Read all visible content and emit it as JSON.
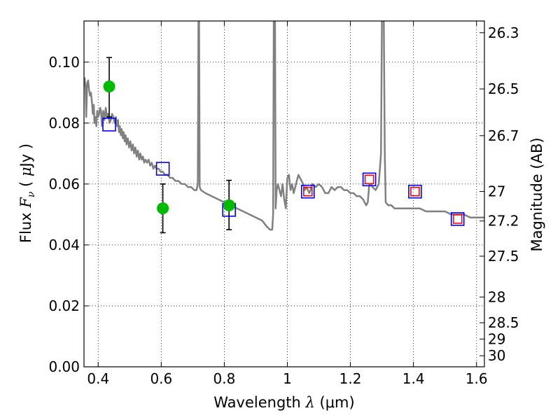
{
  "chart_data": {
    "type": "line",
    "xlabel": "Wavelength  λ (μm)",
    "xlabel_parts": {
      "prefix": "Wavelength  ",
      "symbol": "λ",
      "suffix": " (μm)"
    },
    "ylabel": "Flux  Fν  ( μJy )",
    "ylabel_parts": {
      "prefix": "Flux  ",
      "symbol": "F",
      "subscript": "ν",
      "suffix": "  ( ",
      "symbol2": "μ",
      "suffix2": "Jy )"
    },
    "y2label": "Magnitude (AB)",
    "xlim": [
      0.355,
      1.625
    ],
    "ylim": [
      0.0,
      0.1135
    ],
    "grid": true,
    "x_ticks": [
      {
        "value": 0.4,
        "label": "0.4"
      },
      {
        "value": 0.6,
        "label": "0.6"
      },
      {
        "value": 0.8,
        "label": "0.8"
      },
      {
        "value": 1.0,
        "label": "1"
      },
      {
        "value": 1.2,
        "label": "1.2"
      },
      {
        "value": 1.4,
        "label": "1.4"
      },
      {
        "value": 1.6,
        "label": "1.6"
      }
    ],
    "y_ticks": [
      {
        "value": 0.0,
        "label": "0.00"
      },
      {
        "value": 0.02,
        "label": "0.02"
      },
      {
        "value": 0.04,
        "label": "0.04"
      },
      {
        "value": 0.06,
        "label": "0.06"
      },
      {
        "value": 0.08,
        "label": "0.08"
      },
      {
        "value": 0.1,
        "label": "0.10"
      }
    ],
    "y2_ticks": [
      {
        "mag": 26.3,
        "label": "26.3"
      },
      {
        "mag": 26.5,
        "label": "26.5"
      },
      {
        "mag": 26.7,
        "label": "26.7"
      },
      {
        "mag": 27.0,
        "label": "27"
      },
      {
        "mag": 27.2,
        "label": "27.2"
      },
      {
        "mag": 27.5,
        "label": "27.5"
      },
      {
        "mag": 28.0,
        "label": "28"
      },
      {
        "mag": 28.5,
        "label": "28.5"
      },
      {
        "mag": 29.0,
        "label": "29"
      },
      {
        "mag": 30.0,
        "label": "30"
      }
    ],
    "series": [
      {
        "name": "SED model",
        "kind": "line",
        "color": "#808080",
        "points": [
          [
            0.357,
            0.095
          ],
          [
            0.36,
            0.091
          ],
          [
            0.362,
            0.082
          ],
          [
            0.365,
            0.093
          ],
          [
            0.368,
            0.094
          ],
          [
            0.371,
            0.091
          ],
          [
            0.374,
            0.089
          ],
          [
            0.377,
            0.09
          ],
          [
            0.38,
            0.087
          ],
          [
            0.383,
            0.083
          ],
          [
            0.386,
            0.086
          ],
          [
            0.388,
            0.08
          ],
          [
            0.391,
            0.082
          ],
          [
            0.394,
            0.079
          ],
          [
            0.397,
            0.084
          ],
          [
            0.4,
            0.082
          ],
          [
            0.403,
            0.083
          ],
          [
            0.406,
            0.085
          ],
          [
            0.409,
            0.084
          ],
          [
            0.412,
            0.079
          ],
          [
            0.416,
            0.084
          ],
          [
            0.42,
            0.081
          ],
          [
            0.424,
            0.085
          ],
          [
            0.428,
            0.082
          ],
          [
            0.432,
            0.083
          ],
          [
            0.436,
            0.08
          ],
          [
            0.44,
            0.081
          ],
          [
            0.444,
            0.083
          ],
          [
            0.448,
            0.082
          ],
          [
            0.452,
            0.08
          ],
          [
            0.456,
            0.082
          ],
          [
            0.46,
            0.079
          ],
          [
            0.463,
            0.081
          ],
          [
            0.466,
            0.077
          ],
          [
            0.469,
            0.079
          ],
          [
            0.472,
            0.076
          ],
          [
            0.475,
            0.078
          ],
          [
            0.478,
            0.075
          ],
          [
            0.481,
            0.077
          ],
          [
            0.484,
            0.074
          ],
          [
            0.487,
            0.076
          ],
          [
            0.49,
            0.073
          ],
          [
            0.494,
            0.075
          ],
          [
            0.498,
            0.072
          ],
          [
            0.502,
            0.074
          ],
          [
            0.506,
            0.071
          ],
          [
            0.51,
            0.073
          ],
          [
            0.514,
            0.07
          ],
          [
            0.518,
            0.072
          ],
          [
            0.522,
            0.069
          ],
          [
            0.526,
            0.071
          ],
          [
            0.53,
            0.068
          ],
          [
            0.534,
            0.07
          ],
          [
            0.538,
            0.068
          ],
          [
            0.542,
            0.069
          ],
          [
            0.546,
            0.067
          ],
          [
            0.55,
            0.068
          ],
          [
            0.555,
            0.067
          ],
          [
            0.56,
            0.068
          ],
          [
            0.565,
            0.066
          ],
          [
            0.57,
            0.067
          ],
          [
            0.575,
            0.065
          ],
          [
            0.58,
            0.066
          ],
          [
            0.586,
            0.065
          ],
          [
            0.592,
            0.065
          ],
          [
            0.598,
            0.064
          ],
          [
            0.605,
            0.064
          ],
          [
            0.612,
            0.063
          ],
          [
            0.62,
            0.063
          ],
          [
            0.628,
            0.062
          ],
          [
            0.636,
            0.062
          ],
          [
            0.645,
            0.061
          ],
          [
            0.655,
            0.061
          ],
          [
            0.665,
            0.06
          ],
          [
            0.675,
            0.06
          ],
          [
            0.685,
            0.059
          ],
          [
            0.695,
            0.059
          ],
          [
            0.705,
            0.058
          ],
          [
            0.712,
            0.058
          ],
          [
            0.716,
            0.06
          ],
          [
            0.718,
            0.1135
          ],
          [
            0.72,
            0.1135
          ],
          [
            0.722,
            0.059
          ],
          [
            0.726,
            0.058
          ],
          [
            0.74,
            0.057
          ],
          [
            0.76,
            0.056
          ],
          [
            0.78,
            0.055
          ],
          [
            0.8,
            0.054
          ],
          [
            0.82,
            0.053
          ],
          [
            0.84,
            0.052
          ],
          [
            0.86,
            0.051
          ],
          [
            0.88,
            0.05
          ],
          [
            0.9,
            0.049
          ],
          [
            0.92,
            0.048
          ],
          [
            0.935,
            0.046
          ],
          [
            0.945,
            0.045
          ],
          [
            0.952,
            0.045
          ],
          [
            0.955,
            0.05
          ],
          [
            0.957,
            0.1135
          ],
          [
            0.961,
            0.1135
          ],
          [
            0.963,
            0.052
          ],
          [
            0.966,
            0.058
          ],
          [
            0.97,
            0.06
          ],
          [
            0.975,
            0.058
          ],
          [
            0.98,
            0.056
          ],
          [
            0.985,
            0.06
          ],
          [
            0.99,
            0.055
          ],
          [
            0.995,
            0.052
          ],
          [
            1.0,
            0.062
          ],
          [
            1.005,
            0.063
          ],
          [
            1.01,
            0.058
          ],
          [
            1.015,
            0.06
          ],
          [
            1.02,
            0.057
          ],
          [
            1.025,
            0.059
          ],
          [
            1.03,
            0.061
          ],
          [
            1.035,
            0.063
          ],
          [
            1.04,
            0.062
          ],
          [
            1.045,
            0.061
          ],
          [
            1.05,
            0.06
          ],
          [
            1.055,
            0.058
          ],
          [
            1.06,
            0.059
          ],
          [
            1.07,
            0.057
          ],
          [
            1.08,
            0.06
          ],
          [
            1.09,
            0.059
          ],
          [
            1.1,
            0.06
          ],
          [
            1.11,
            0.059
          ],
          [
            1.115,
            0.058
          ],
          [
            1.12,
            0.057
          ],
          [
            1.13,
            0.057
          ],
          [
            1.14,
            0.059
          ],
          [
            1.15,
            0.058
          ],
          [
            1.16,
            0.059
          ],
          [
            1.17,
            0.059
          ],
          [
            1.18,
            0.058
          ],
          [
            1.19,
            0.058
          ],
          [
            1.2,
            0.057
          ],
          [
            1.21,
            0.057
          ],
          [
            1.22,
            0.056
          ],
          [
            1.23,
            0.056
          ],
          [
            1.24,
            0.055
          ],
          [
            1.25,
            0.053
          ],
          [
            1.255,
            0.054
          ],
          [
            1.26,
            0.06
          ],
          [
            1.265,
            0.06
          ],
          [
            1.27,
            0.059
          ],
          [
            1.28,
            0.058
          ],
          [
            1.29,
            0.06
          ],
          [
            1.297,
            0.07
          ],
          [
            1.3,
            0.1135
          ],
          [
            1.306,
            0.1135
          ],
          [
            1.309,
            0.07
          ],
          [
            1.312,
            0.054
          ],
          [
            1.32,
            0.053
          ],
          [
            1.33,
            0.053
          ],
          [
            1.34,
            0.052
          ],
          [
            1.36,
            0.052
          ],
          [
            1.38,
            0.052
          ],
          [
            1.4,
            0.052
          ],
          [
            1.42,
            0.052
          ],
          [
            1.44,
            0.051
          ],
          [
            1.46,
            0.051
          ],
          [
            1.48,
            0.051
          ],
          [
            1.5,
            0.051
          ],
          [
            1.52,
            0.05
          ],
          [
            1.54,
            0.05
          ],
          [
            1.56,
            0.05
          ],
          [
            1.58,
            0.049
          ],
          [
            1.6,
            0.049
          ],
          [
            1.625,
            0.049
          ]
        ]
      },
      {
        "name": "Model photometry (blue squares)",
        "kind": "marker",
        "color": "#0000ff",
        "points": [
          [
            0.435,
            0.0795
          ],
          [
            0.605,
            0.065
          ],
          [
            0.815,
            0.0515
          ],
          [
            1.065,
            0.0575
          ],
          [
            1.26,
            0.0615
          ],
          [
            1.405,
            0.0575
          ],
          [
            1.54,
            0.0485
          ]
        ]
      },
      {
        "name": "Model photometry (red squares)",
        "kind": "marker",
        "color": "#ff0000",
        "points": [
          [
            1.065,
            0.0575
          ],
          [
            1.26,
            0.0615
          ],
          [
            1.405,
            0.0575
          ],
          [
            1.54,
            0.0485
          ]
        ]
      },
      {
        "name": "Observed photometry",
        "kind": "errorbar",
        "color": "#00bb00",
        "points": [
          {
            "x": 0.435,
            "y": 0.092,
            "ylo": 0.082,
            "yhi": 0.1015
          },
          {
            "x": 0.605,
            "y": 0.052,
            "ylo": 0.044,
            "yhi": 0.06
          },
          {
            "x": 0.815,
            "y": 0.053,
            "ylo": 0.045,
            "yhi": 0.0612
          }
        ]
      }
    ]
  }
}
